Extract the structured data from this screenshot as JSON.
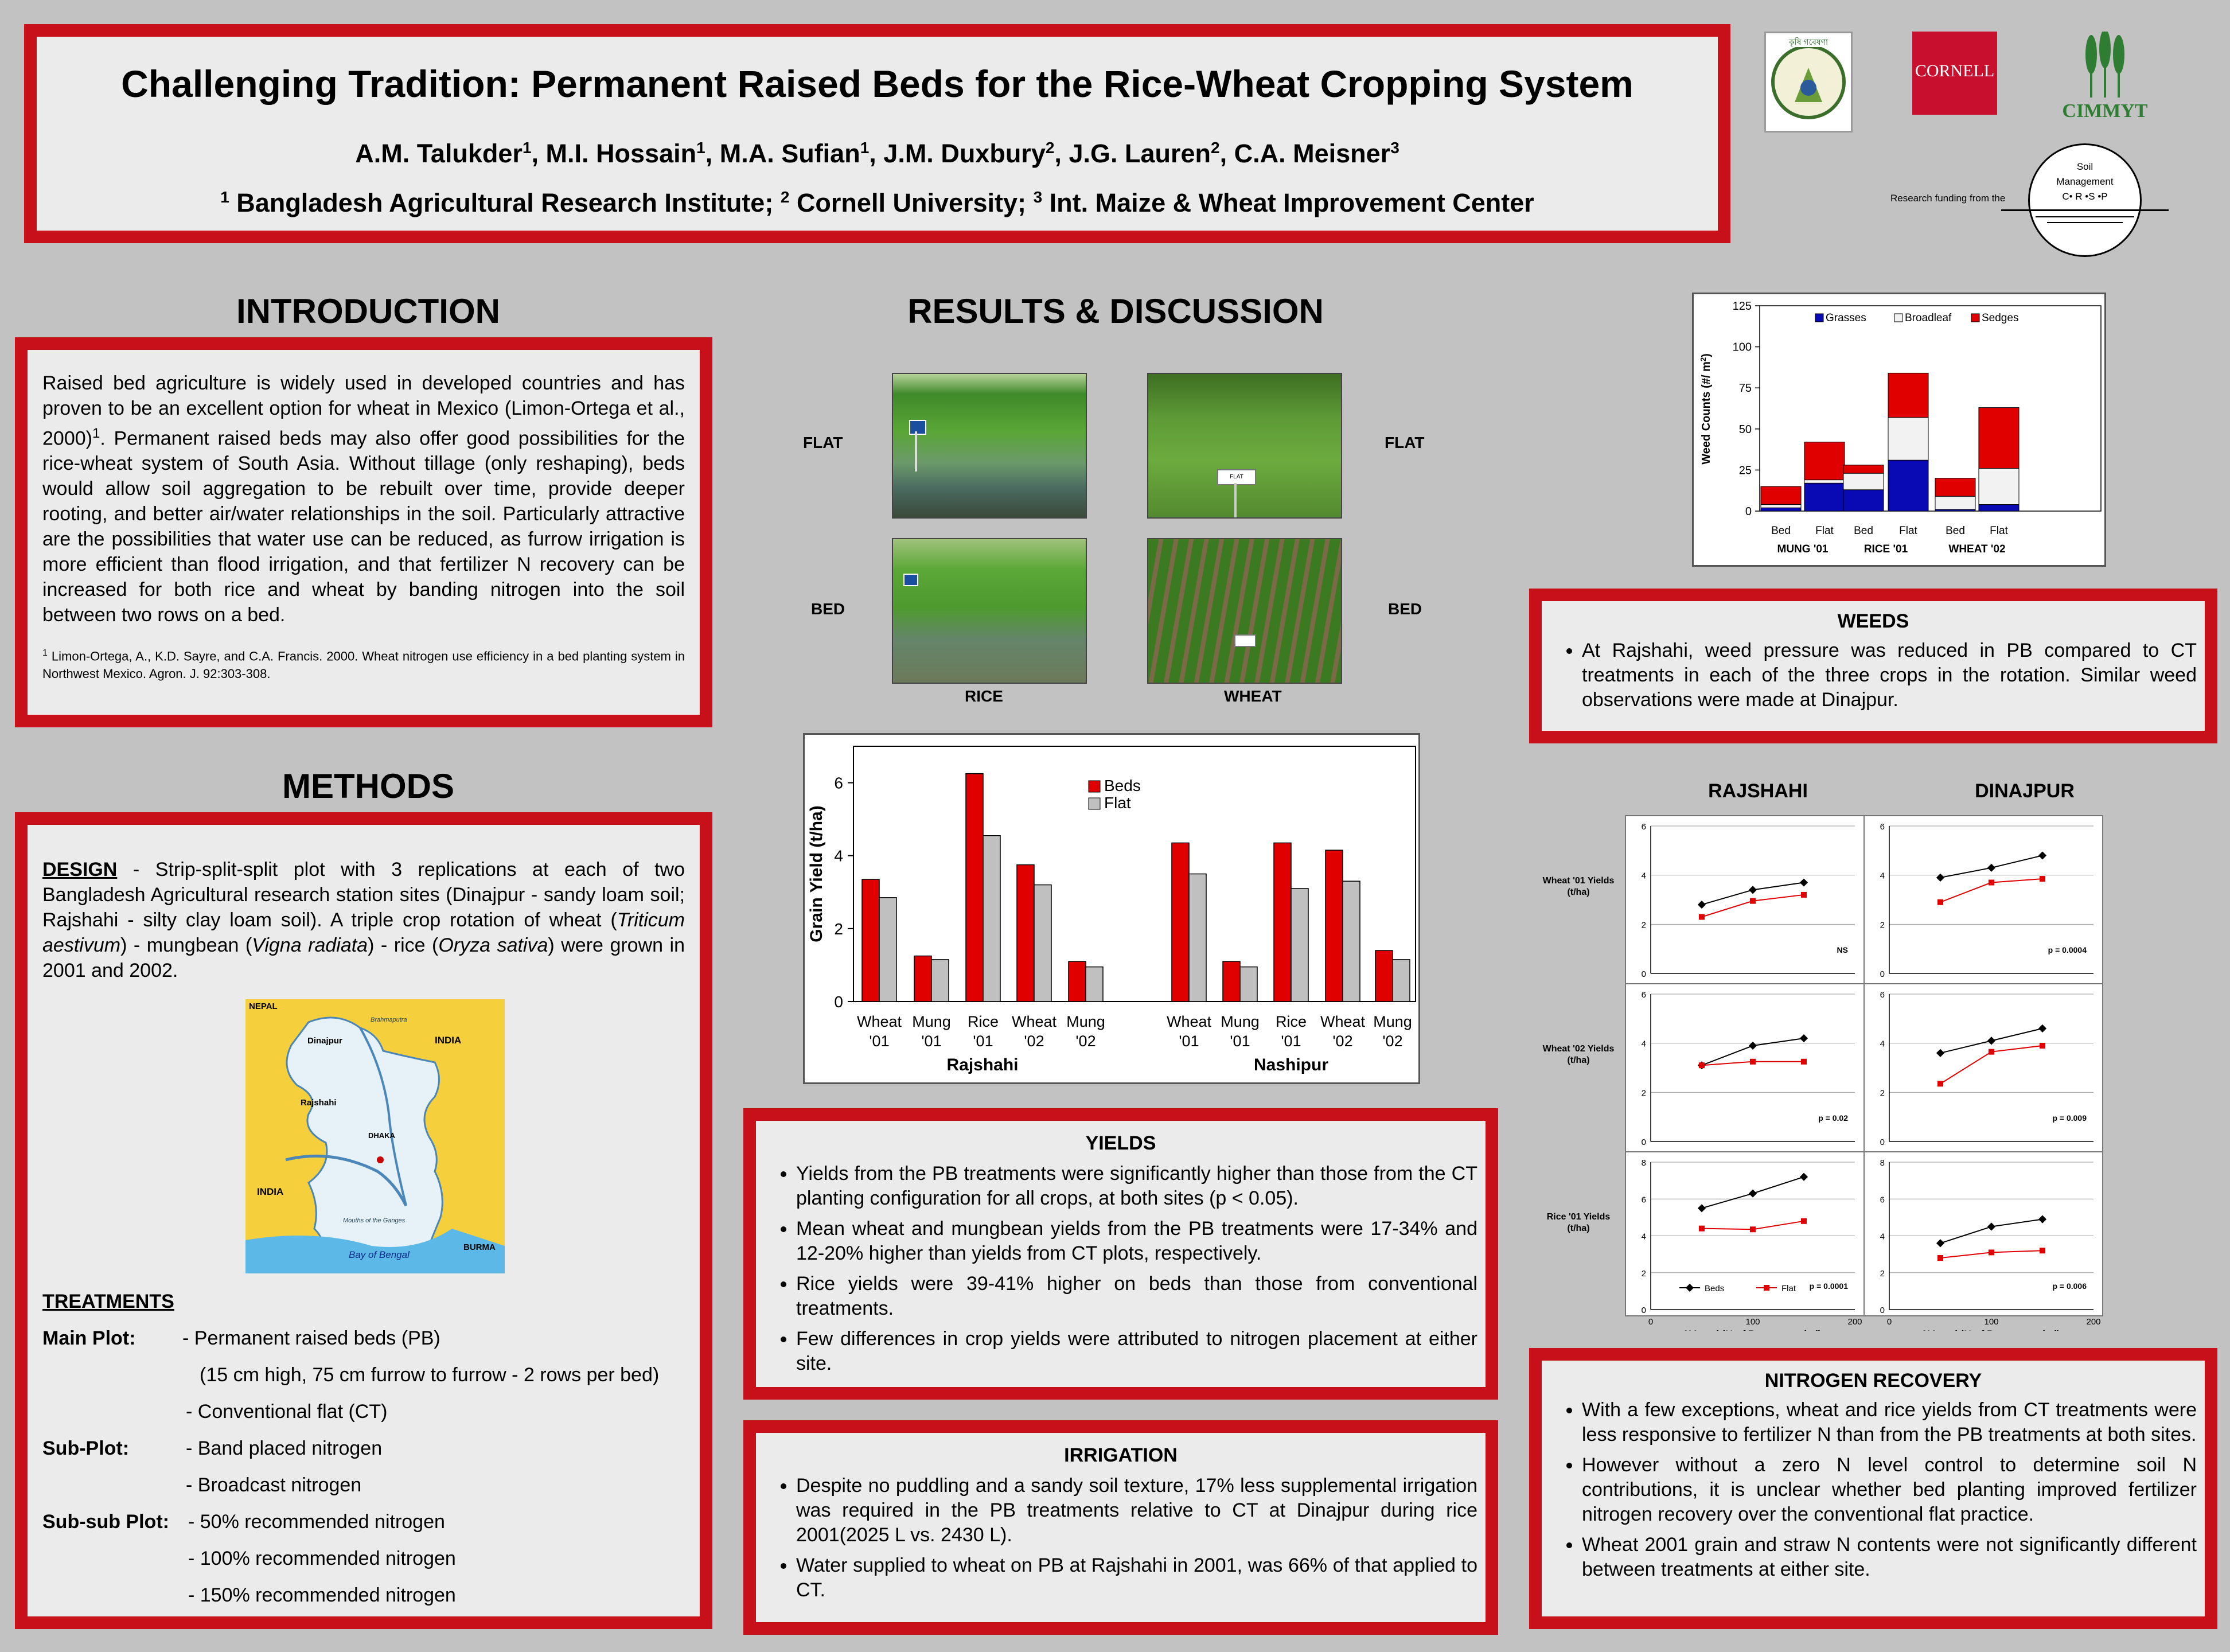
{
  "header": {
    "title": "Challenging Tradition:  Permanent Raised Beds for the Rice-Wheat Cropping System",
    "authors": [
      {
        "name": "A.M. Talukder",
        "sup": "1"
      },
      {
        "name": "M.I. Hossain",
        "sup": "1"
      },
      {
        "name": "M.A. Sufian",
        "sup": "1"
      },
      {
        "name": "J.M. Duxbury",
        "sup": "2"
      },
      {
        "name": "J.G. Lauren",
        "sup": "2"
      },
      {
        "name": "C.A. Meisner",
        "sup": "3"
      }
    ],
    "affiliations": [
      {
        "sup": "1",
        "name": "Bangladesh Agricultural Research Institute;"
      },
      {
        "sup": "2",
        "name": "Cornell University;"
      },
      {
        "sup": "3",
        "name": "Int. Maize & Wheat Improvement Center"
      }
    ]
  },
  "logos": {
    "cornell": "CORNELL",
    "cimmyt": "CIMMYT",
    "funding": "Research funding from the",
    "smcrsp_top": "Soil",
    "smcrsp_mid": "Management",
    "smcrsp_bot": "C• R •S •P",
    "bari_arc": "কৃষি গবেষণা"
  },
  "introduction": {
    "heading": "INTRODUCTION",
    "text": "Raised bed agriculture is widely used in developed countries and has proven to be an excellent option for wheat in Mexico (Limon-Ortega et al., 2000)",
    "text_sup": "1",
    "text2": ".   Permanent raised beds may also offer good possibilities for the rice-wheat system of South Asia.  Without tillage (only reshaping), beds would allow soil aggregation to be rebuilt over time, provide deeper rooting, and better air/water relationships in the soil.  Particularly attractive are the possibilities that water use can be reduced, as furrow irrigation is more efficient than flood irrigation, and that fertilizer N recovery can be increased for both rice and wheat by banding nitrogen into the soil between two rows on a bed.",
    "ref_sup": "1",
    "reference": "   Limon-Ortega, A., K.D. Sayre, and C.A. Francis. 2000. Wheat nitrogen use efficiency in a bed planting system in Northwest Mexico. Agron. J. 92:303-308."
  },
  "methods": {
    "heading": "METHODS",
    "design_label": "DESIGN",
    "design_a": " - Strip-split-split plot with 3 replications at each of two Bangladesh Agricultural research station sites (Dinajpur - sandy loam soil; Rajshahi - silty clay loam soil).  A triple crop rotation of wheat (",
    "wheat_sci": "Triticum aestivum",
    "design_b": ") - mungbean (",
    "mung_sci": "Vigna radiata",
    "design_c": ") - rice (",
    "rice_sci": "Oryza sativa",
    "design_d": ") were grown in 2001 and 2002.",
    "map_labels": {
      "nepal": "NEPAL",
      "india_n": "INDIA",
      "india_w": "INDIA",
      "dinajpur": "Dinajpur",
      "rajshahi": "Rajshahi",
      "dhaka": "DHAKA",
      "burma": "BURMA",
      "bay": "Bay of Bengal",
      "brahmaputra": "Brahmaputra",
      "ganges": "Mouths of the Ganges"
    },
    "treatments_heading": "TREATMENTS",
    "main_label": "Main Plot:",
    "main_1": "- Permanent raised beds (PB)",
    "main_1b": "(15 cm high, 75 cm furrow to furrow - 2 rows per bed)",
    "main_2": "- Conventional flat (CT)",
    "sub_label": "Sub-Plot:",
    "sub_1": "- Band placed nitrogen",
    "sub_2": "- Broadcast nitrogen",
    "subsub_label": "Sub-sub Plot:",
    "subsub_1": "- 50% recommended nitrogen",
    "subsub_2": "- 100% recommended nitrogen",
    "subsub_3": "- 150% recommended nitrogen"
  },
  "results": {
    "heading": "RESULTS & DISCUSSION",
    "photo_labels": {
      "flat_l": "FLAT",
      "bed_l": "BED",
      "flat_r": "FLAT",
      "bed_r": "BED",
      "rice": "RICE",
      "wheat": "WHEAT"
    },
    "photo_sign": "FLAT"
  },
  "yields": {
    "heading": "YIELDS",
    "bullets": [
      "Yields from the PB treatments were significantly higher than those from the CT planting configuration for all crops, at both sites (p < 0.05).",
      "Mean wheat and mungbean yields from the PB treatments were 17-34% and 12-20% higher than yields from CT plots, respectively.",
      "Rice yields were 39-41% higher on beds than those from conventional treatments.",
      "Few differences in crop yields were attributed to nitrogen placement at either site."
    ]
  },
  "irrigation": {
    "heading": "IRRIGATION",
    "bullets": [
      "Despite no puddling and a sandy soil texture, 17% less supplemental irrigation was required in the PB treatments relative to CT at Dinajpur during rice 2001(2025 L vs. 2430 L).",
      "Water supplied to wheat on PB at Rajshahi in 2001, was 66% of that applied to CT."
    ]
  },
  "weeds": {
    "heading": "WEEDS",
    "bullets": [
      "At Rajshahi, weed pressure was reduced in PB compared to CT treatments in each of the three crops in the rotation.  Similar weed observations were made at Dinajpur."
    ]
  },
  "nitrogen": {
    "heading": "NITROGEN RECOVERY",
    "bullets": [
      "With a few exceptions, wheat and rice yields from CT treatments were less responsive to fertilizer N  than from the PB treatments at both sites.",
      "However without a zero N level control to determine soil N contributions, it is unclear whether bed planting improved fertilizer nitrogen recovery over the conventional flat practice.",
      "Wheat 2001 grain and straw N contents were not significantly different between treatments at either site."
    ]
  },
  "chart_data": [
    {
      "type": "bar",
      "ylabel": "Grain Yield (t/ha)",
      "ylim": [
        0,
        7
      ],
      "yticks": [
        0,
        2,
        4,
        6
      ],
      "groups": [
        "Rajshahi",
        "Nashipur"
      ],
      "categories": [
        {
          "line1": "Wheat",
          "line2": "'01"
        },
        {
          "line1": "Mung",
          "line2": "'01"
        },
        {
          "line1": "Rice",
          "line2": "'01"
        },
        {
          "line1": "Wheat",
          "line2": "'02"
        },
        {
          "line1": "Mung",
          "line2": "'02"
        },
        {
          "line1": "Wheat",
          "line2": "'01"
        },
        {
          "line1": "Mung",
          "line2": "'01"
        },
        {
          "line1": "Rice",
          "line2": "'01"
        },
        {
          "line1": "Wheat",
          "line2": "'02"
        },
        {
          "line1": "Mung",
          "line2": "'02"
        }
      ],
      "series": [
        {
          "name": "Beds",
          "color": "#e00000",
          "values": [
            3.35,
            1.25,
            6.25,
            3.75,
            1.1,
            4.35,
            1.1,
            4.35,
            4.15,
            1.4
          ]
        },
        {
          "name": "Flat",
          "color": "#c0c0c0",
          "values": [
            2.85,
            1.15,
            4.55,
            3.2,
            0.95,
            3.5,
            0.95,
            3.1,
            3.3,
            1.15
          ]
        }
      ],
      "legend": "top-right"
    },
    {
      "type": "bar",
      "stacked": true,
      "ylabel": "Weed Counts (#/ m",
      "ylabel_sup": "2",
      "ylabel_end": ")",
      "ylim": [
        0,
        125
      ],
      "yticks": [
        0,
        25,
        50,
        75,
        100,
        125
      ],
      "groups": [
        "MUNG '01",
        "RICE '01",
        "WHEAT '02"
      ],
      "categories": [
        "Bed",
        "Flat",
        "Bed",
        "Flat",
        "Bed",
        "Flat"
      ],
      "series": [
        {
          "name": "Grasses",
          "color": "#0a0ab4",
          "values": [
            2,
            17,
            13,
            31,
            1,
            4
          ]
        },
        {
          "name": "Broadleaf",
          "color": "#f2f2f2",
          "values": [
            2,
            2,
            10,
            26,
            8,
            22
          ]
        },
        {
          "name": "Sedges",
          "color": "#e00000",
          "values": [
            11,
            23,
            5,
            27,
            11,
            37
          ]
        }
      ],
      "legend": "top"
    },
    {
      "type": "line",
      "sites": [
        "RAJSHAHI",
        "DINAJPUR"
      ],
      "xlabel": "N Level (% of Recommended)",
      "xticks": [
        0,
        100,
        200
      ],
      "x": [
        50,
        100,
        150
      ],
      "legend": {
        "beds": "Beds",
        "flat": "Flat"
      },
      "rows": [
        {
          "label1": "Wheat '01 Yields",
          "label2": "(t/ha)",
          "ylim": [
            0,
            6
          ],
          "yticks": [
            0,
            2,
            4,
            6
          ],
          "panels": [
            {
              "beds": [
                2.8,
                3.4,
                3.7
              ],
              "flat": [
                2.3,
                2.95,
                3.2
              ],
              "pval": "NS"
            },
            {
              "beds": [
                3.9,
                4.3,
                4.8
              ],
              "flat": [
                2.9,
                3.7,
                3.85
              ],
              "pval": "p = 0.0004"
            }
          ]
        },
        {
          "label1": "Wheat '02 Yields",
          "label2": "(t/ha)",
          "ylim": [
            0,
            6
          ],
          "yticks": [
            0,
            2,
            4,
            6
          ],
          "panels": [
            {
              "beds": [
                3.1,
                3.9,
                4.2
              ],
              "flat": [
                3.1,
                3.25,
                3.25
              ],
              "pval": "p = 0.02"
            },
            {
              "beds": [
                3.6,
                4.1,
                4.6
              ],
              "flat": [
                2.35,
                3.65,
                3.9
              ],
              "pval": "p = 0.009"
            }
          ]
        },
        {
          "label1": "Rice '01 Yields",
          "label2": "(t/ha)",
          "ylim": [
            0,
            8
          ],
          "yticks": [
            0,
            2,
            4,
            6,
            8
          ],
          "panels": [
            {
              "beds": [
                5.5,
                6.3,
                7.2
              ],
              "flat": [
                4.4,
                4.35,
                4.8
              ],
              "pval": "p = 0.0001"
            },
            {
              "beds": [
                3.6,
                4.5,
                4.9
              ],
              "flat": [
                2.8,
                3.1,
                3.2
              ],
              "pval": "p = 0.006"
            }
          ]
        }
      ]
    }
  ]
}
